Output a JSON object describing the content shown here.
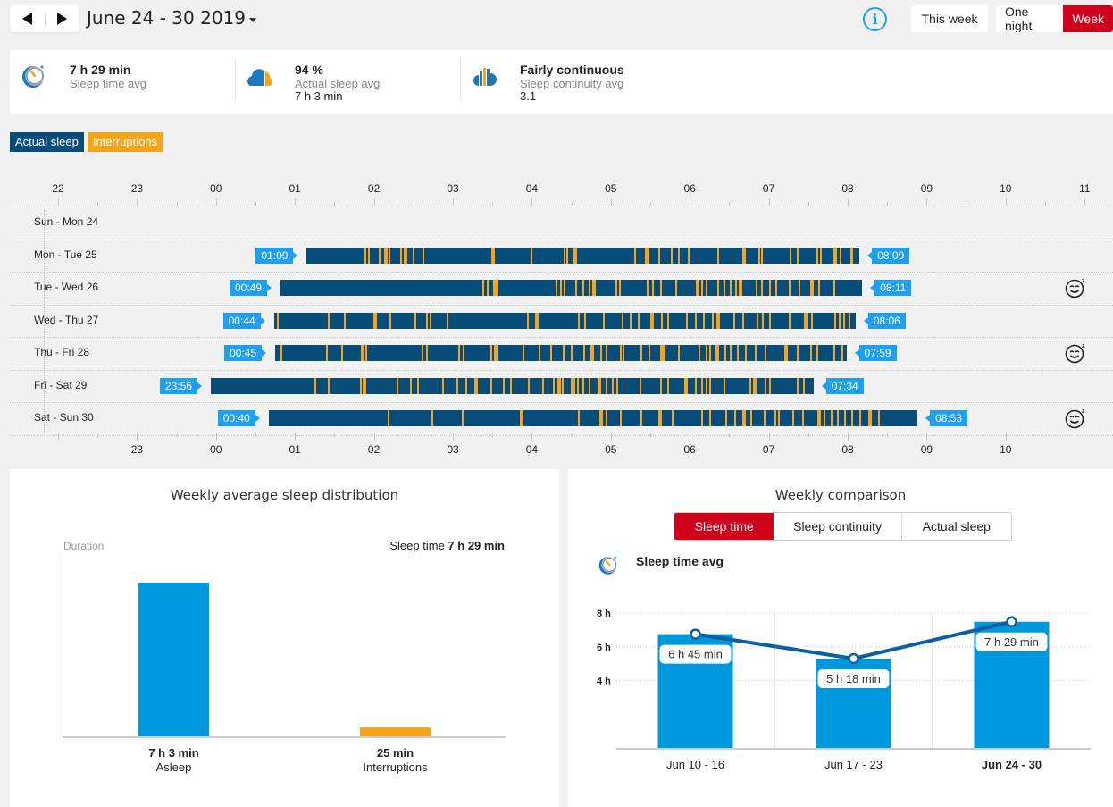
{
  "header": {
    "prev_label": "previous-week",
    "next_label": "next-week",
    "date_range": "June 24 - 30 2019",
    "info_icon": "i",
    "this_week": "This week",
    "view_toggle": [
      {
        "label": "One night",
        "active": false
      },
      {
        "label": "Week",
        "active": true
      }
    ]
  },
  "summary": [
    {
      "icon": "stopwatch-icon",
      "value": "7 h 29 min",
      "label": "Sleep time avg",
      "sub": ""
    },
    {
      "icon": "cloud-icon",
      "value": "94 %",
      "label": "Actual sleep avg",
      "sub": "7 h 3 min"
    },
    {
      "icon": "continuity-icon",
      "value": "Fairly continuous",
      "label": "Sleep continuity avg",
      "sub": "3.1"
    }
  ],
  "legend": {
    "sleep": "Actual sleep",
    "interruptions": "Interruptions"
  },
  "colors": {
    "sleep": "#064d7c",
    "interruption": "#f5a51d",
    "tag": "#1e9ff0",
    "accent": "#d0021b",
    "bar": "#0098dc",
    "line": "#0b5fa3"
  },
  "timeline": {
    "top_ticks": [
      "22",
      "23",
      "00",
      "01",
      "02",
      "03",
      "04",
      "05",
      "06",
      "07",
      "08",
      "09",
      "10",
      "11"
    ],
    "bottom_ticks": [
      "23",
      "00",
      "01",
      "02",
      "03",
      "04",
      "05",
      "06",
      "07",
      "08",
      "09",
      "10"
    ],
    "nights": [
      {
        "label": "Sun - Mon 24",
        "start": null,
        "end": null,
        "smiley": false,
        "interruptions": []
      },
      {
        "label": "Mon - Tue 25",
        "start": "01:09",
        "end": "08:09",
        "smiley": false,
        "interruptions": [
          1.88,
          1.93,
          2.06,
          2.13,
          2.18,
          2.33,
          2.38,
          2.4,
          2.49,
          2.62,
          3.49,
          3.98,
          4.4,
          4.44,
          4.53,
          4.55,
          5.3,
          5.43,
          5.47,
          5.6,
          5.76,
          5.85,
          5.97,
          6.35,
          6.67,
          6.87,
          6.9,
          7.27,
          7.35,
          7.6,
          7.65,
          7.82,
          7.9,
          8.03,
          8.05
        ]
      },
      {
        "label": "Tue - Wed 26",
        "start": "00:49",
        "end": "08:11",
        "smiley": true,
        "interruptions": [
          3.37,
          3.43,
          3.51,
          3.53,
          4.3,
          4.36,
          4.4,
          4.55,
          4.64,
          4.72,
          4.76,
          5.06,
          5.1,
          5.45,
          5.52,
          5.62,
          5.82,
          6.08,
          6.14,
          6.2,
          6.35,
          6.43,
          6.51,
          6.57,
          6.62,
          6.83,
          6.9,
          7.0,
          7.08,
          7.25,
          7.38,
          7.52,
          7.63,
          7.82
        ]
      },
      {
        "label": "Wed - Thu 27",
        "start": "00:44",
        "end": "08:06",
        "smiley": false,
        "interruptions": [
          0.77,
          1.42,
          1.62,
          1.99,
          2.2,
          2.51,
          2.66,
          2.71,
          2.92,
          3.94,
          4.04,
          4.58,
          4.66,
          4.9,
          5.14,
          5.24,
          5.34,
          5.5,
          5.64,
          5.72,
          5.95,
          6.06,
          6.17,
          6.28,
          6.34,
          6.55,
          6.67,
          6.85,
          6.91,
          7.0,
          7.25,
          7.45,
          7.54,
          7.83,
          7.89,
          7.94,
          8.01
        ]
      },
      {
        "label": "Thu - Fri 28",
        "start": "00:45",
        "end": "07:59",
        "smiley": true,
        "interruptions": [
          0.82,
          1.39,
          1.59,
          1.84,
          1.89,
          2.6,
          2.66,
          3.07,
          3.12,
          3.48,
          3.52,
          3.88,
          4.09,
          4.23,
          4.39,
          4.49,
          4.65,
          4.74,
          4.87,
          4.94,
          5.11,
          5.15,
          5.37,
          5.48,
          5.62,
          5.65,
          5.67,
          5.85,
          6.11,
          6.2,
          6.25,
          6.33,
          6.44,
          6.51,
          6.6,
          6.7,
          6.82,
          6.95,
          7.2,
          7.35,
          7.52,
          7.6,
          7.82,
          7.92
        ]
      },
      {
        "label": "Fri - Sat 29",
        "start": "23:56",
        "end": "07:34",
        "smiley": false,
        "interruptions": [
          1.25,
          1.42,
          1.82,
          1.86,
          2.29,
          2.46,
          2.55,
          2.86,
          3.04,
          3.16,
          3.27,
          3.48,
          3.63,
          3.72,
          3.95,
          4.13,
          4.27,
          4.32,
          4.38,
          4.49,
          4.53,
          4.57,
          4.64,
          4.72,
          4.83,
          4.94,
          5.01,
          5.07,
          5.36,
          5.63,
          5.72,
          5.93,
          6.06,
          6.14,
          6.2,
          6.25,
          6.43,
          6.76,
          6.8,
          6.95,
          7.0,
          7.35,
          7.43
        ]
      },
      {
        "label": "Sat - Sun 30",
        "start": "00:40",
        "end": "08:53",
        "smiley": true,
        "interruptions": [
          2.18,
          2.73,
          3.11,
          3.85,
          4.58,
          4.86,
          4.88,
          4.93,
          5.12,
          5.38,
          5.6,
          5.62,
          5.77,
          6.15,
          6.25,
          6.45,
          6.56,
          6.67,
          6.77,
          6.94,
          7.07,
          7.12,
          7.3,
          7.42,
          7.62,
          7.69,
          7.79,
          7.87,
          7.95,
          8.05,
          8.15,
          8.26,
          8.38
        ]
      }
    ]
  },
  "distribution": {
    "title": "Weekly average sleep distribution",
    "axis_label": "Duration",
    "sleep_time_label": "Sleep time",
    "sleep_time_value": "7 h 29 min",
    "bars": [
      {
        "value": "7 h 3 min",
        "label": "Asleep",
        "minutes": 423,
        "color": "#0098dc"
      },
      {
        "value": "25 min",
        "label": "Interruptions",
        "minutes": 25,
        "color": "#f5a51d"
      }
    ]
  },
  "comparison": {
    "title": "Weekly comparison",
    "tabs": [
      {
        "label": "Sleep time",
        "active": true
      },
      {
        "label": "Sleep continuity",
        "active": false
      },
      {
        "label": "Actual sleep",
        "active": false
      }
    ],
    "subtitle": "Sleep time avg"
  },
  "chart_data": {
    "type": "bar",
    "title": "Weekly comparison",
    "subtitle": "Sleep time avg",
    "categories": [
      "Jun 10 - 16",
      "Jun 17 - 23",
      "Jun 24 - 30"
    ],
    "series": [
      {
        "name": "Sleep time avg (hours)",
        "values": [
          6.75,
          5.3,
          7.483
        ]
      },
      {
        "name": "Trend line",
        "values": [
          6.75,
          5.3,
          7.483
        ]
      }
    ],
    "data_labels": [
      "6 h 45 min",
      "5 h 18 min",
      "7 h 29 min"
    ],
    "y_ticks": [
      "4 h",
      "6 h",
      "8 h"
    ],
    "y_tick_values": [
      4,
      6,
      8
    ],
    "ylim": [
      0,
      8
    ],
    "xlabel": "",
    "ylabel": "",
    "highlight_category": "Jun 24 - 30",
    "grid": true
  }
}
